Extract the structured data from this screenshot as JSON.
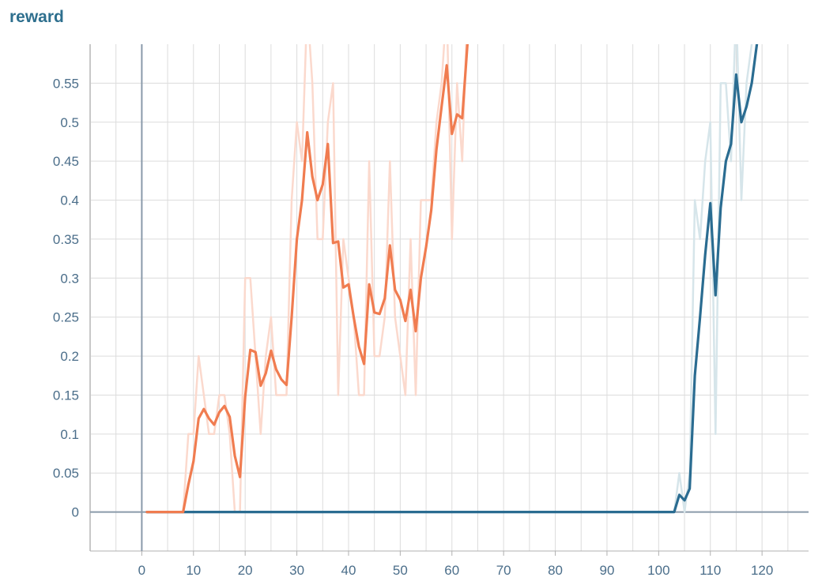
{
  "chart_data": {
    "type": "line",
    "title": "reward",
    "xlabel": "",
    "ylabel": "",
    "xlim": [
      -10,
      129
    ],
    "ylim": [
      -0.05,
      0.6
    ],
    "grid": true,
    "x_ticks": [
      "0",
      "10",
      "20",
      "30",
      "40",
      "50",
      "60",
      "70",
      "80",
      "90",
      "100",
      "110",
      "120"
    ],
    "y_ticks": [
      "0",
      "0.05",
      "0.1",
      "0.15",
      "0.2",
      "0.25",
      "0.3",
      "0.35",
      "0.4",
      "0.45",
      "0.5",
      "0.55"
    ],
    "series": [
      {
        "color": "#f07c50",
        "raw_color": "#fbd9cd",
        "raw": {
          "x": [
            1,
            2,
            3,
            4,
            5,
            6,
            7,
            8,
            9,
            10,
            11,
            12,
            13,
            14,
            15,
            16,
            17,
            18,
            19,
            20,
            21,
            22,
            23,
            24,
            25,
            26,
            27,
            28,
            29,
            30,
            31,
            32,
            33,
            34,
            35,
            36,
            37,
            38,
            39,
            40,
            41,
            42,
            43,
            44,
            45,
            46,
            47,
            48,
            49,
            50,
            51,
            52,
            53,
            54,
            55,
            56,
            57,
            58,
            59,
            60,
            61,
            62,
            63
          ],
          "y": [
            0,
            0,
            0,
            0,
            0,
            0,
            0,
            0,
            0.1,
            0.1,
            0.2,
            0.15,
            0.1,
            0.1,
            0.15,
            0.15,
            0.1,
            0,
            0,
            0.3,
            0.3,
            0.2,
            0.1,
            0.2,
            0.25,
            0.15,
            0.15,
            0.15,
            0.4,
            0.5,
            0.45,
            0.65,
            0.55,
            0.35,
            0.35,
            0.5,
            0.55,
            0.15,
            0.35,
            0.3,
            0.25,
            0.15,
            0.15,
            0.45,
            0.2,
            0.2,
            0.25,
            0.45,
            0.25,
            0.2,
            0.15,
            0.35,
            0.15,
            0.4,
            0.4,
            0.4,
            0.5,
            0.55,
            0.65,
            0.35,
            0.55,
            0.45,
            0.65
          ]
        },
        "smoothed": {
          "x": [
            1,
            2,
            3,
            4,
            5,
            6,
            7,
            8,
            9,
            10,
            11,
            12,
            13,
            14,
            15,
            16,
            17,
            18,
            19,
            20,
            21,
            22,
            23,
            24,
            25,
            26,
            27,
            28,
            29,
            30,
            31,
            32,
            33,
            34,
            35,
            36,
            37,
            38,
            39,
            40,
            41,
            42,
            43,
            44,
            45,
            46,
            47,
            48,
            49,
            50,
            51,
            52,
            53,
            54,
            55,
            56,
            57,
            58,
            59,
            60,
            61,
            62,
            63
          ],
          "y": [
            0,
            0,
            0,
            0,
            0,
            0,
            0,
            0,
            0.035,
            0.065,
            0.12,
            0.132,
            0.12,
            0.112,
            0.128,
            0.136,
            0.122,
            0.072,
            0.045,
            0.148,
            0.208,
            0.205,
            0.162,
            0.178,
            0.207,
            0.183,
            0.17,
            0.163,
            0.25,
            0.35,
            0.4,
            0.487,
            0.43,
            0.4,
            0.42,
            0.472,
            0.345,
            0.347,
            0.288,
            0.292,
            0.25,
            0.212,
            0.19,
            0.292,
            0.256,
            0.254,
            0.274,
            0.342,
            0.285,
            0.272,
            0.245,
            0.285,
            0.232,
            0.3,
            0.34,
            0.387,
            0.465,
            0.52,
            0.573,
            0.485,
            0.51,
            0.505,
            0.6
          ]
        }
      },
      {
        "color": "#2a6c91",
        "raw_color": "#d6e5ea",
        "raw": {
          "x": [
            1,
            103,
            104,
            105,
            106,
            107,
            108,
            109,
            110,
            111,
            112,
            113,
            114,
            115,
            116,
            117,
            118,
            119
          ],
          "y": [
            0,
            0,
            0.05,
            0,
            0.05,
            0.4,
            0.35,
            0.45,
            0.5,
            0.1,
            0.55,
            0.55,
            0.45,
            0.65,
            0.4,
            0.55,
            0.6,
            0.65
          ]
        },
        "smoothed": {
          "x": [
            1,
            103,
            104,
            105,
            106,
            107,
            108,
            109,
            110,
            111,
            112,
            113,
            114,
            115,
            116,
            117,
            118,
            119
          ],
          "y": [
            0,
            0,
            0.022,
            0.015,
            0.03,
            0.175,
            0.25,
            0.33,
            0.396,
            0.278,
            0.39,
            0.45,
            0.472,
            0.561,
            0.5,
            0.52,
            0.55,
            0.6
          ]
        }
      }
    ]
  }
}
